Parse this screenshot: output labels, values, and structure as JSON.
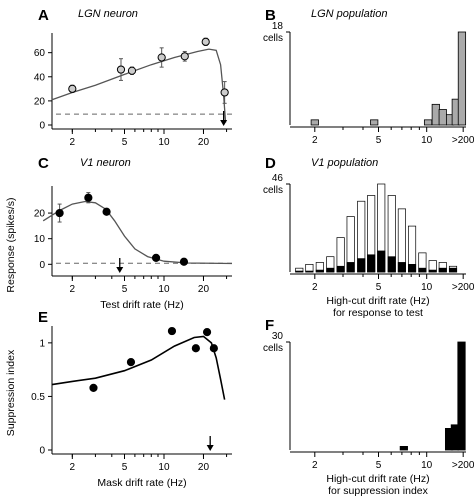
{
  "chart_data": [
    {
      "id": "A",
      "type": "scatter",
      "letter": "A",
      "title": "LGN neuron",
      "xscale": "log",
      "xlim": [
        1.4,
        33
      ],
      "ylim": [
        0,
        73
      ],
      "xticks": [
        2,
        5,
        10,
        20
      ],
      "yticks": [
        0,
        20,
        40,
        60
      ],
      "points": [
        {
          "x": 2,
          "y": 30,
          "err": 3
        },
        {
          "x": 4.7,
          "y": 46,
          "err": 9
        },
        {
          "x": 5.7,
          "y": 45,
          "err": 3
        },
        {
          "x": 9.6,
          "y": 56,
          "err": 8
        },
        {
          "x": 14.4,
          "y": 57,
          "err": 4
        },
        {
          "x": 20.8,
          "y": 69,
          "err": 3
        },
        {
          "x": 29,
          "y": 27,
          "err": 9
        }
      ],
      "fit_curve": [
        [
          1.4,
          21
        ],
        [
          2,
          27
        ],
        [
          3,
          33
        ],
        [
          5,
          42
        ],
        [
          8,
          50
        ],
        [
          12,
          56
        ],
        [
          18,
          61
        ],
        [
          22,
          63
        ],
        [
          25,
          62
        ],
        [
          27,
          50
        ],
        [
          28.5,
          25
        ],
        [
          29.5,
          2
        ]
      ],
      "baseline": 9,
      "arrow_x": 28.5,
      "marker_fill": "#cccccc"
    },
    {
      "id": "B",
      "type": "bar",
      "letter": "B",
      "title": "LGN population",
      "ymax_label": "18",
      "ymax_unit": "cells",
      "ymax": 18,
      "bar_color": "#aaaaaa",
      "xticks": [
        "2",
        "5",
        "10",
        ">200"
      ],
      "bars": [
        {
          "pos": 2.0,
          "value": 1
        },
        {
          "pos": 4.7,
          "value": 1
        },
        {
          "pos": 10.2,
          "value": 1
        },
        {
          "pos": 11.4,
          "value": 4
        },
        {
          "pos": 12.6,
          "value": 3
        },
        {
          "pos": 14.0,
          "value": 2
        },
        {
          "pos": 15.2,
          "value": 5
        },
        {
          "pos": 16.6,
          "value": 18
        }
      ]
    },
    {
      "id": "C",
      "type": "scatter",
      "letter": "C",
      "title": "V1 neuron",
      "xscale": "log",
      "xlim": [
        1.4,
        33
      ],
      "ylim": [
        -3,
        29
      ],
      "xticks": [
        2,
        5,
        10,
        20
      ],
      "yticks": [
        0,
        10,
        20
      ],
      "xlabel": "Test drift rate (Hz)",
      "points": [
        {
          "x": 1.6,
          "y": 20,
          "err": 3.5
        },
        {
          "x": 2.65,
          "y": 26,
          "err": 2
        },
        {
          "x": 3.65,
          "y": 20.5,
          "err": 1
        },
        {
          "x": 8.7,
          "y": 2.5,
          "err": 0.5
        },
        {
          "x": 14.2,
          "y": 1,
          "err": 0.4
        }
      ],
      "fit_curve": [
        [
          1.2,
          17
        ],
        [
          1.6,
          21
        ],
        [
          2.0,
          23.5
        ],
        [
          2.5,
          24.5
        ],
        [
          3.0,
          24
        ],
        [
          3.6,
          21.5
        ],
        [
          4.2,
          17
        ],
        [
          5.0,
          11
        ],
        [
          6.0,
          6
        ],
        [
          7.5,
          3
        ],
        [
          10,
          1.2
        ],
        [
          15,
          0.5
        ],
        [
          33,
          0.3
        ]
      ],
      "baseline": 0.4,
      "arrow_x": 4.6
    },
    {
      "id": "D",
      "type": "bar",
      "letter": "D",
      "title": "V1 population",
      "ymax_label": "46",
      "ymax_unit": "cells",
      "ymax": 46,
      "xticks": [
        "2",
        "5",
        "10",
        ">200"
      ],
      "xlabel_line1": "High-cut drift rate (Hz)",
      "xlabel_line2": "for response to test",
      "series": [
        {
          "name": "",
          "color": "#ffffff",
          "values": [
            2,
            4,
            5,
            8,
            18,
            29,
            37,
            40,
            46,
            40,
            33,
            24,
            10,
            6,
            5,
            3
          ]
        },
        {
          "name": "",
          "color": "#000000",
          "values": [
            0.5,
            0.5,
            1,
            2,
            3,
            5,
            7,
            9,
            11,
            8,
            5,
            4,
            2,
            1,
            2,
            2
          ]
        }
      ],
      "bar_positions": [
        1.6,
        1.85,
        2.15,
        2.5,
        2.9,
        3.35,
        3.9,
        4.5,
        5.2,
        6.05,
        7.0,
        8.1,
        9.4,
        10.9,
        12.6,
        14.6
      ]
    },
    {
      "id": "E",
      "type": "scatter",
      "letter": "E",
      "xscale": "log",
      "xlim": [
        1.4,
        33
      ],
      "ylim": [
        0,
        1.12
      ],
      "xticks": [
        2,
        5,
        10,
        20
      ],
      "yticks": [
        0,
        0.5,
        1
      ],
      "ytick_labels": [
        "0",
        "0.5",
        "1"
      ],
      "xlabel": "Mask drift rate (Hz)",
      "points": [
        {
          "x": 2.9,
          "y": 0.58
        },
        {
          "x": 5.6,
          "y": 0.82
        },
        {
          "x": 11.5,
          "y": 1.11
        },
        {
          "x": 17.5,
          "y": 0.95
        },
        {
          "x": 21.3,
          "y": 1.1
        },
        {
          "x": 24,
          "y": 0.95
        }
      ],
      "fit_curve": [
        [
          1.4,
          0.61
        ],
        [
          2,
          0.64
        ],
        [
          3,
          0.67
        ],
        [
          5,
          0.74
        ],
        [
          8,
          0.84
        ],
        [
          12,
          0.97
        ],
        [
          17,
          1.05
        ],
        [
          20,
          1.06
        ],
        [
          23,
          1.0
        ],
        [
          25,
          0.86
        ],
        [
          27,
          0.66
        ],
        [
          29,
          0.47
        ]
      ],
      "arrow_x": 22.5
    },
    {
      "id": "F",
      "type": "bar",
      "letter": "F",
      "ymax_label": "30",
      "ymax_unit": "cells",
      "ymax": 30,
      "bar_color": "#000000",
      "xticks": [
        "2",
        "5",
        "10",
        ">200"
      ],
      "xlabel_line1": "High-cut drift rate (Hz)",
      "xlabel_line2": "for suppression index",
      "bars": [
        {
          "pos": 7.2,
          "value": 1
        },
        {
          "pos": 13.8,
          "value": 6
        },
        {
          "pos": 15.0,
          "value": 7
        },
        {
          "pos": 16.5,
          "value": 30
        }
      ]
    }
  ],
  "shared_ylabel_top": "Response (spikes/s)",
  "shared_ylabel_bottom": "Suppression index"
}
